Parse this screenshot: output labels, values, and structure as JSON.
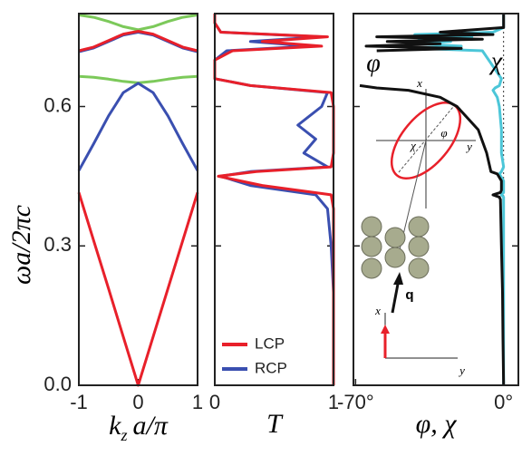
{
  "chart_data": [
    {
      "type": "line",
      "orientation": "vertical",
      "y_label": "ωa/2πc",
      "x_label": {
        "main": "k",
        "sub": "z",
        "rest": "a/π"
      },
      "x": [
        -1,
        -0.75,
        -0.5,
        -0.25,
        0,
        0.25,
        0.5,
        0.75,
        1
      ],
      "xlim": [
        -1,
        1
      ],
      "xticks": [
        -1,
        0,
        1
      ],
      "ylim": [
        0,
        0.8
      ],
      "yticks": [
        {
          "value": 0,
          "label": "0.0"
        },
        0.3,
        0.6
      ],
      "series": [
        {
          "color": "#7cc95a",
          "values": [
            0.797,
            0.792,
            0.783,
            0.772,
            0.765,
            0.772,
            0.783,
            0.792,
            0.797
          ]
        },
        {
          "color": "#7cc95a",
          "values": [
            0.665,
            0.663,
            0.659,
            0.654,
            0.651,
            0.654,
            0.659,
            0.663,
            0.665
          ]
        },
        {
          "color": "#3a4fb0",
          "values": [
            0.462,
            0.52,
            0.58,
            0.63,
            0.65,
            0.63,
            0.58,
            0.52,
            0.462
          ]
        },
        {
          "color": "#3a4fb0",
          "values": [
            0.718,
            0.726,
            0.74,
            0.754,
            0.76,
            0.754,
            0.74,
            0.726,
            0.718
          ]
        },
        {
          "color": "#e8202a",
          "values": [
            0.415,
            0.311,
            0.208,
            0.104,
            0,
            0.104,
            0.208,
            0.311,
            0.415
          ]
        },
        {
          "color": "#e8202a",
          "values": [
            0.72,
            0.728,
            0.742,
            0.756,
            0.762,
            0.756,
            0.742,
            0.728,
            0.72
          ]
        }
      ]
    },
    {
      "type": "line",
      "orientation": "horizontal",
      "x_label": "T",
      "y": [
        0,
        0.1,
        0.2,
        0.3,
        0.38,
        0.41,
        0.43,
        0.45,
        0.46,
        0.47,
        0.5,
        0.53,
        0.56,
        0.6,
        0.63,
        0.645,
        0.66,
        0.7,
        0.72,
        0.73,
        0.74,
        0.75,
        0.76,
        0.78,
        0.8
      ],
      "xlim": [
        0,
        1
      ],
      "xticks": [
        0,
        1
      ],
      "ylim": [
        0,
        0.8
      ],
      "yticks": [
        0,
        0.3,
        0.6
      ],
      "legend": "lower left",
      "series": [
        {
          "name": "LCP",
          "color": "#e8202a",
          "values": [
            1,
            1,
            1,
            1,
            1,
            0.98,
            0.4,
            0.03,
            0.35,
            0.98,
            1,
            1,
            1,
            1,
            0.98,
            0.3,
            0,
            0,
            0.15,
            0.9,
            0.4,
            0.95,
            0.05,
            0,
            0
          ]
        },
        {
          "name": "RCP",
          "color": "#3a4fb0",
          "values": [
            1,
            1,
            1,
            0.98,
            0.95,
            0.85,
            0.3,
            0.05,
            0.3,
            0.95,
            0.75,
            0.85,
            0.7,
            0.9,
            0.95,
            0.3,
            0,
            0,
            0.1,
            0.8,
            0.3,
            0.9,
            0.05,
            0,
            0
          ]
        }
      ]
    },
    {
      "type": "line",
      "orientation": "horizontal",
      "x_label": "φ, χ",
      "y": [
        0,
        0.1,
        0.2,
        0.3,
        0.4,
        0.405,
        0.41,
        0.415,
        0.42,
        0.44,
        0.455,
        0.46,
        0.47,
        0.5,
        0.55,
        0.6,
        0.62,
        0.635,
        0.64,
        0.645,
        0.66,
        0.72,
        0.725,
        0.73,
        0.735,
        0.74,
        0.745,
        0.75,
        0.755,
        0.76,
        0.77,
        0.8
      ],
      "xlim": [
        -71,
        7
      ],
      "xticks": [
        {
          "value": -70,
          "label": "-70°"
        },
        {
          "value": 0,
          "label": "0°"
        }
      ],
      "ylim": [
        0,
        0.8
      ],
      "yticks": [
        0,
        0.3,
        0.6
      ],
      "zero_line": true,
      "series": [
        {
          "name": "χ",
          "color": "#4cc6d8",
          "values": [
            0,
            0,
            0,
            0,
            0,
            0,
            -1,
            0,
            0,
            0,
            -2,
            -1,
            0,
            -1,
            -1,
            -2,
            -3,
            -5,
            -4,
            -2,
            -1,
            -10,
            -40,
            -20,
            -42,
            -25,
            -40,
            -15,
            -42,
            -5,
            0,
            0
          ]
        },
        {
          "name": "φ",
          "color": "#111111",
          "values": [
            0,
            -0.3,
            -0.5,
            -1,
            -1.5,
            -2,
            -5,
            -1.5,
            -1,
            -1,
            -3,
            -6,
            -6.5,
            -8,
            -12,
            -22,
            -30,
            -45,
            -60,
            -68,
            null,
            -60,
            -20,
            -65,
            -30,
            -55,
            -10,
            -60,
            -5,
            -30,
            0,
            0
          ]
        }
      ]
    }
  ],
  "inset": {
    "labels": [
      "x",
      "y",
      "χ",
      "φ",
      "q",
      "x",
      "y"
    ]
  }
}
